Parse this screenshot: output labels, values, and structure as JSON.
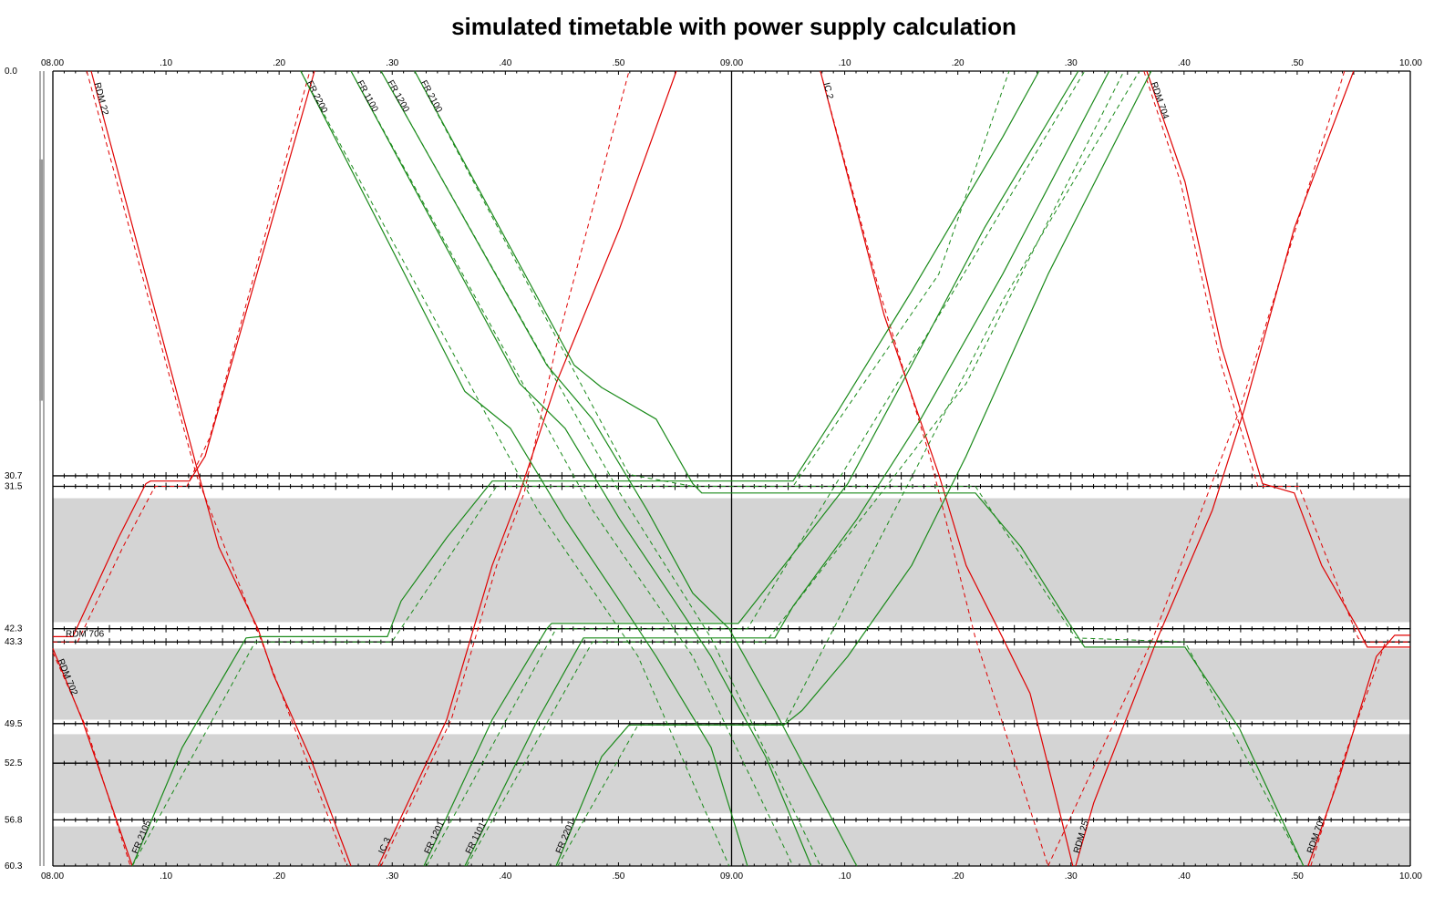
{
  "chart_data": {
    "type": "line",
    "title": "simulated timetable with power supply calculation",
    "x_axis": {
      "type": "time",
      "range": [
        "08:00:00",
        "10:00:00"
      ],
      "major_tick_minutes": 10,
      "minor_tick_minutes": 1,
      "tick_labels": [
        {
          "time": "08:00:00",
          "label": "08.00"
        },
        {
          "time": "08:10:00",
          "label": ".10"
        },
        {
          "time": "08:20:00",
          "label": ".20"
        },
        {
          "time": "08:30:00",
          "label": ".30"
        },
        {
          "time": "08:40:00",
          "label": ".40"
        },
        {
          "time": "08:50:00",
          "label": ".50"
        },
        {
          "time": "09:00:00",
          "label": "09.00"
        },
        {
          "time": "09:10:00",
          "label": ".10"
        },
        {
          "time": "09:20:00",
          "label": ".20"
        },
        {
          "time": "09:30:00",
          "label": ".30"
        },
        {
          "time": "09:40:00",
          "label": ".40"
        },
        {
          "time": "09:50:00",
          "label": ".50"
        },
        {
          "time": "10:00:00",
          "label": "10.00"
        }
      ],
      "positions": [
        "top",
        "bottom"
      ]
    },
    "y_axis": {
      "unit": "km",
      "range": [
        0.0,
        60.3
      ],
      "inverted": true,
      "station_km": [
        {
          "km": 0.0,
          "label": "0.0"
        },
        {
          "km": 30.7,
          "label": "30.7"
        },
        {
          "km": 31.5,
          "label": "31.5"
        },
        {
          "km": 42.3,
          "label": "42.3"
        },
        {
          "km": 43.3,
          "label": "43.3"
        },
        {
          "km": 49.5,
          "label": "49.5"
        },
        {
          "km": 52.5,
          "label": "52.5"
        },
        {
          "km": 56.8,
          "label": "56.8"
        },
        {
          "km": 60.3,
          "label": "60.3"
        }
      ]
    },
    "current_time_line": "09:00:00",
    "shaded_sections_km": [
      [
        32.4,
        41.8
      ],
      [
        43.8,
        49.2
      ],
      [
        50.3,
        56.3
      ],
      [
        57.3,
        60.3
      ]
    ],
    "left_marker_km": [
      6.7,
      25.0
    ],
    "colors": {
      "regional": "#e00000",
      "freight": "#1a8a1a",
      "shading": "#d4d4d4",
      "axis": "#000000"
    },
    "legend": "none",
    "series": [
      {
        "name": "RDM 22",
        "category": "regional",
        "actual": [
          [
            "08:03:23",
            0
          ],
          [
            "08:12:53",
            30.6
          ],
          [
            "08:14:40",
            36.1
          ],
          [
            "08:18:08",
            42.3
          ],
          [
            "08:19:30",
            45.8
          ],
          [
            "08:22:43",
            52.0
          ],
          [
            "08:26:21",
            60.3
          ]
        ],
        "planned": [
          [
            "08:03:00",
            0
          ],
          [
            "08:12:40",
            30.6
          ],
          [
            "08:18:20",
            43.0
          ],
          [
            "08:26:00",
            60.3
          ]
        ]
      },
      {
        "name": "RDM 706",
        "category": "regional",
        "actual": [
          [
            "08:00:00",
            42.9
          ],
          [
            "08:01:46",
            42.9
          ],
          [
            "08:05:48",
            35.4
          ],
          [
            "08:08:13",
            31.3
          ],
          [
            "08:08:38",
            31.1
          ],
          [
            "08:12:05",
            31.1
          ],
          [
            "08:13:28",
            29.2
          ],
          [
            "08:23:08",
            0
          ]
        ],
        "planned": [
          [
            "08:00:00",
            43.3
          ],
          [
            "08:02:11",
            43.3
          ],
          [
            "08:06:12",
            36.1
          ],
          [
            "08:09:02",
            31.5
          ],
          [
            "08:11:51",
            31.5
          ],
          [
            "08:13:52",
            27.8
          ],
          [
            "08:22:43",
            0
          ]
        ]
      },
      {
        "name": "RDM 702",
        "category": "regional",
        "actual": [
          [
            "08:00:00",
            43.8
          ],
          [
            "08:02:35",
            49.2
          ],
          [
            "08:07:01",
            60.3
          ]
        ],
        "planned": [
          [
            "08:00:00",
            44.1
          ],
          [
            "08:03:00",
            49.9
          ],
          [
            "08:06:51",
            60.3
          ]
        ]
      },
      {
        "name": "IC 3",
        "category": "regional",
        "actual": [
          [
            "08:28:46",
            60.3
          ],
          [
            "08:34:49",
            49.2
          ],
          [
            "08:38:50",
            37.5
          ],
          [
            "08:41:16",
            32.0
          ],
          [
            "08:44:29",
            23.7
          ],
          [
            "08:50:07",
            11.9
          ],
          [
            "08:55:07",
            0
          ]
        ],
        "planned": [
          [
            "08:29:01",
            60.3
          ],
          [
            "08:35:13",
            49.2
          ],
          [
            "08:39:14",
            37.5
          ],
          [
            "08:41:40",
            32.0
          ],
          [
            "08:44:29",
            20.9
          ],
          [
            "08:50:56",
            0
          ]
        ]
      },
      {
        "name": "IC 2",
        "category": "regional",
        "actual": [
          [
            "09:07:51",
            0
          ],
          [
            "09:13:29",
            18.5
          ],
          [
            "09:18:19",
            30.6
          ],
          [
            "09:20:44",
            37.5
          ],
          [
            "09:23:58",
            43.0
          ],
          [
            "09:26:23",
            47.2
          ],
          [
            "09:28:48",
            55.5
          ],
          [
            "09:30:10",
            60.3
          ]
        ],
        "planned": [
          [
            "09:07:51",
            0
          ],
          [
            "09:13:05",
            16.7
          ],
          [
            "09:17:31",
            29.2
          ],
          [
            "09:21:33",
            43.0
          ],
          [
            "09:27:59",
            60.3
          ]
        ]
      },
      {
        "name": "RDM 704",
        "category": "regional",
        "actual": [
          [
            "09:36:42",
            0
          ],
          [
            "09:40:05",
            8.4
          ],
          [
            "09:43:18",
            20.9
          ],
          [
            "09:46:56",
            31.3
          ],
          [
            "09:49:45",
            32.0
          ],
          [
            "09:52:10",
            37.5
          ],
          [
            "09:55:23",
            42.3
          ],
          [
            "09:56:12",
            43.7
          ],
          [
            "10:00:00",
            43.7
          ]
        ],
        "planned": [
          [
            "09:36:27",
            0
          ],
          [
            "09:39:41",
            8.4
          ],
          [
            "09:43:18",
            22.3
          ],
          [
            "09:46:32",
            31.5
          ],
          [
            "09:50:09",
            31.5
          ],
          [
            "09:55:23",
            43.0
          ],
          [
            "09:55:48",
            43.3
          ],
          [
            "10:00:00",
            43.3
          ]
        ]
      },
      {
        "name": "RDM 25",
        "category": "regional",
        "actual": [
          [
            "09:30:25",
            60.3
          ],
          [
            "09:32:01",
            55.5
          ],
          [
            "09:37:40",
            43.0
          ],
          [
            "09:42:30",
            33.3
          ],
          [
            "09:45:19",
            25.7
          ],
          [
            "09:49:45",
            11.9
          ],
          [
            "09:54:59",
            0
          ]
        ],
        "planned": [
          [
            "09:27:59",
            60.3
          ],
          [
            "09:37:16",
            43.0
          ],
          [
            "09:44:55",
            25.7
          ],
          [
            "09:54:11",
            0
          ]
        ]
      },
      {
        "name": "RDM 707",
        "category": "regional",
        "actual": [
          [
            "09:50:58",
            60.3
          ],
          [
            "09:53:47",
            53.4
          ],
          [
            "09:57:00",
            44.4
          ],
          [
            "09:58:37",
            42.8
          ],
          [
            "10:00:00",
            42.8
          ]
        ],
        "planned": [
          [
            "09:51:12",
            60.3
          ],
          [
            "09:54:11",
            52.0
          ],
          [
            "09:57:48",
            43.3
          ],
          [
            "10:00:00",
            43.3
          ]
        ]
      },
      {
        "name": "FR 2200",
        "category": "freight",
        "actual": [
          [
            "08:21:55",
            0
          ],
          [
            "08:36:25",
            24.3
          ],
          [
            "08:40:27",
            27.1
          ],
          [
            "08:45:17",
            34.0
          ],
          [
            "08:50:07",
            40.2
          ],
          [
            "08:53:20",
            44.4
          ],
          [
            "08:58:11",
            51.3
          ],
          [
            "09:01:24",
            60.3
          ]
        ],
        "planned": [
          [
            "08:21:55",
            0
          ],
          [
            "08:42:52",
            33.3
          ],
          [
            "08:51:44",
            44.4
          ],
          [
            "08:59:47",
            60.3
          ]
        ]
      },
      {
        "name": "FR 1100",
        "category": "freight",
        "actual": [
          [
            "08:26:21",
            0
          ],
          [
            "08:41:16",
            23.7
          ],
          [
            "08:45:17",
            27.1
          ],
          [
            "08:50:07",
            34.0
          ],
          [
            "08:54:58",
            40.2
          ],
          [
            "08:58:11",
            44.4
          ],
          [
            "09:03:01",
            52.0
          ],
          [
            "09:07:02",
            60.3
          ]
        ],
        "planned": [
          [
            "08:26:21",
            0
          ],
          [
            "08:47:42",
            33.3
          ],
          [
            "08:56:34",
            44.4
          ],
          [
            "09:05:26",
            60.3
          ]
        ]
      },
      {
        "name": "FR 1200",
        "category": "freight",
        "actual": [
          [
            "08:29:01",
            0
          ],
          [
            "08:43:40",
            22.3
          ],
          [
            "08:47:42",
            26.4
          ],
          [
            "08:52:32",
            33.3
          ],
          [
            "08:56:34",
            39.6
          ],
          [
            "08:59:47",
            42.3
          ],
          [
            "09:03:49",
            48.5
          ],
          [
            "09:11:04",
            60.3
          ]
        ],
        "planned": [
          [
            "08:29:01",
            0
          ],
          [
            "08:50:07",
            32.0
          ],
          [
            "08:58:11",
            43.0
          ],
          [
            "09:07:51",
            60.3
          ]
        ]
      },
      {
        "name": "FR 2100",
        "category": "freight",
        "actual": [
          [
            "08:31:59",
            0
          ],
          [
            "08:46:05",
            22.3
          ],
          [
            "08:48:31",
            24.0
          ],
          [
            "08:53:20",
            26.4
          ],
          [
            "08:56:34",
            31.3
          ],
          [
            "08:57:22",
            32.0
          ],
          [
            "09:21:33",
            32.0
          ],
          [
            "09:25:35",
            36.1
          ],
          [
            "09:29:37",
            41.6
          ],
          [
            "09:31:13",
            43.7
          ],
          [
            "09:40:05",
            43.7
          ],
          [
            "09:44:55",
            49.9
          ],
          [
            "09:50:34",
            60.3
          ]
        ],
        "planned": [
          [
            "08:31:59",
            0
          ],
          [
            "08:50:56",
            30.6
          ],
          [
            "08:56:34",
            31.5
          ],
          [
            "09:21:33",
            31.5
          ],
          [
            "09:30:25",
            43.0
          ],
          [
            "09:40:05",
            43.3
          ],
          [
            "09:50:34",
            60.3
          ]
        ]
      },
      {
        "name": "FR 2105",
        "category": "freight",
        "actual": [
          [
            "08:07:01",
            60.3
          ],
          [
            "08:11:26",
            51.3
          ],
          [
            "08:17:05",
            43.0
          ],
          [
            "08:18:17",
            42.9
          ],
          [
            "08:29:34",
            42.9
          ],
          [
            "08:30:47",
            40.2
          ],
          [
            "08:34:49",
            35.4
          ],
          [
            "08:38:50",
            31.1
          ],
          [
            "09:05:26",
            31.1
          ],
          [
            "09:09:28",
            25.7
          ],
          [
            "09:15:55",
            16.7
          ],
          [
            "09:23:58",
            5.0
          ],
          [
            "09:27:11",
            0
          ]
        ],
        "planned": [
          [
            "08:07:01",
            60.3
          ],
          [
            "08:17:53",
            43.3
          ],
          [
            "08:29:58",
            43.3
          ],
          [
            "08:39:14",
            31.5
          ],
          [
            "09:05:26",
            31.5
          ],
          [
            "09:18:19",
            15.4
          ],
          [
            "09:24:32",
            0
          ]
        ]
      },
      {
        "name": "FR 1201",
        "category": "freight",
        "actual": [
          [
            "08:32:48",
            60.3
          ],
          [
            "08:38:50",
            49.2
          ],
          [
            "08:43:40",
            42.3
          ],
          [
            "08:44:05",
            41.9
          ],
          [
            "09:00:36",
            41.9
          ],
          [
            "09:04:38",
            37.5
          ],
          [
            "09:10:16",
            31.3
          ],
          [
            "09:15:55",
            22.3
          ],
          [
            "09:22:21",
            11.9
          ],
          [
            "09:30:39",
            0
          ]
        ],
        "planned": [
          [
            "08:33:02",
            60.3
          ],
          [
            "08:44:29",
            42.3
          ],
          [
            "09:01:24",
            42.3
          ],
          [
            "09:19:08",
            17.4
          ],
          [
            "09:31:13",
            0
          ]
        ]
      },
      {
        "name": "FR 1101",
        "category": "freight",
        "actual": [
          [
            "08:36:25",
            60.3
          ],
          [
            "08:42:52",
            49.2
          ],
          [
            "08:46:54",
            43.0
          ],
          [
            "09:03:49",
            43.0
          ],
          [
            "09:05:26",
            40.6
          ],
          [
            "09:11:04",
            34.0
          ],
          [
            "09:16:43",
            26.4
          ],
          [
            "09:23:58",
            15.4
          ],
          [
            "09:33:23",
            0
          ]
        ],
        "planned": [
          [
            "08:36:35",
            60.3
          ],
          [
            "08:47:42",
            43.3
          ],
          [
            "09:03:01",
            43.3
          ],
          [
            "09:20:44",
            23.7
          ],
          [
            "09:34:41",
            0
          ]
        ]
      },
      {
        "name": "FR 2201",
        "category": "freight",
        "actual": [
          [
            "08:44:29",
            60.3
          ],
          [
            "08:48:31",
            52.0
          ],
          [
            "08:50:56",
            49.6
          ],
          [
            "09:04:38",
            49.6
          ],
          [
            "09:06:14",
            48.5
          ],
          [
            "09:10:16",
            44.4
          ],
          [
            "09:15:55",
            37.5
          ],
          [
            "09:20:44",
            29.2
          ],
          [
            "09:27:59",
            15.4
          ],
          [
            "09:37:06",
            0
          ]
        ],
        "planned": [
          [
            "08:44:38",
            60.3
          ],
          [
            "08:51:44",
            49.6
          ],
          [
            "09:04:38",
            49.6
          ],
          [
            "09:23:58",
            17.4
          ],
          [
            "09:36:03",
            0
          ]
        ]
      }
    ]
  }
}
